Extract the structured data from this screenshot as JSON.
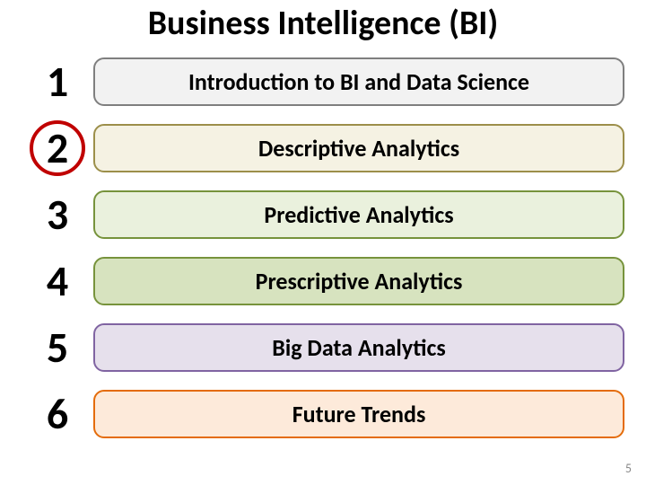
{
  "title": {
    "text": "Business Intelligence (BI)",
    "fontsize": 38,
    "color": "#000000"
  },
  "number_fontsize": 48,
  "box_fontsize": 26,
  "highlight_circle_color": "#c00000",
  "highlighted_index": 1,
  "items": [
    {
      "num": "1",
      "label": "Introduction to BI and Data Science",
      "fill": "#f2f2f2",
      "border": "#7f7f7f"
    },
    {
      "num": "2",
      "label": "Descriptive Analytics",
      "fill": "#f5f2e3",
      "border": "#9c8f4a"
    },
    {
      "num": "3",
      "label": "Predictive Analytics",
      "fill": "#eaf1dd",
      "border": "#77933c"
    },
    {
      "num": "4",
      "label": "Prescriptive Analytics",
      "fill": "#d7e3bf",
      "border": "#77933c"
    },
    {
      "num": "5",
      "label": "Big Data Analytics",
      "fill": "#e6e0ec",
      "border": "#8064a2"
    },
    {
      "num": "6",
      "label": "Future Trends",
      "fill": "#fdeada",
      "border": "#e46c0a"
    }
  ],
  "page_number": "5",
  "background_color": "#ffffff"
}
